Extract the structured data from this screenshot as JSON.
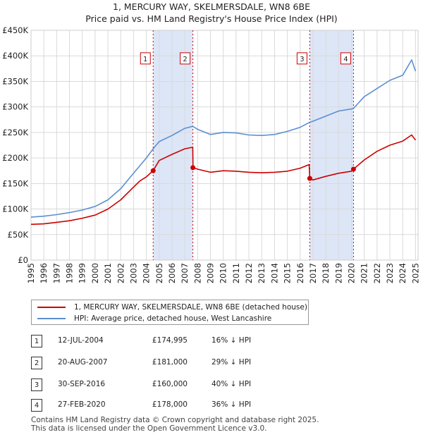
{
  "chart_data": {
    "type": "line",
    "title": "1, MERCURY WAY, SKELMERSDALE, WN8 6BE",
    "subtitle": "Price paid vs. HM Land Registry's House Price Index (HPI)",
    "xlim": [
      1995,
      2025.2
    ],
    "ylim": [
      0,
      450000
    ],
    "x_ticks": [
      "1995",
      "1996",
      "1997",
      "1998",
      "1999",
      "2000",
      "2001",
      "2002",
      "2003",
      "2004",
      "2005",
      "2006",
      "2007",
      "2008",
      "2009",
      "2010",
      "2011",
      "2012",
      "2013",
      "2014",
      "2015",
      "2016",
      "2017",
      "2018",
      "2019",
      "2020",
      "2021",
      "2022",
      "2023",
      "2024",
      "2025"
    ],
    "y_ticks": [
      {
        "value": 0,
        "label": "£0"
      },
      {
        "value": 50000,
        "label": "£50K"
      },
      {
        "value": 100000,
        "label": "£100K"
      },
      {
        "value": 150000,
        "label": "£150K"
      },
      {
        "value": 200000,
        "label": "£200K"
      },
      {
        "value": 250000,
        "label": "£250K"
      },
      {
        "value": 300000,
        "label": "£300K"
      },
      {
        "value": 350000,
        "label": "£350K"
      },
      {
        "value": 400000,
        "label": "£400K"
      },
      {
        "value": 450000,
        "label": "£450K"
      }
    ],
    "grid": true,
    "series": [
      {
        "name": "1, MERCURY WAY, SKELMERSDALE, WN8 6BE (detached house)",
        "color": "#cc0000",
        "x": [
          1995,
          1996,
          1997,
          1998,
          1999,
          2000,
          2001,
          2002,
          2003,
          2003.5,
          2004,
          2004.53,
          2005,
          2006,
          2007,
          2007.62,
          2007.64,
          2008,
          2009,
          2010,
          2011,
          2012,
          2013,
          2014,
          2015,
          2016,
          2016.7,
          2016.75,
          2017,
          2018,
          2019,
          2020,
          2020.16,
          2021,
          2022,
          2023,
          2024,
          2024.7,
          2025
        ],
        "y": [
          70000,
          71000,
          74000,
          77000,
          82000,
          88000,
          100000,
          118000,
          143000,
          155000,
          163000,
          174995,
          195000,
          207000,
          218000,
          221000,
          181000,
          178000,
          172000,
          175000,
          174000,
          172000,
          171000,
          172000,
          174000,
          180000,
          187000,
          160000,
          157000,
          164000,
          170000,
          174000,
          178000,
          196000,
          213000,
          225000,
          233000,
          245000,
          235000
        ]
      },
      {
        "name": "HPI: Average price, detached house, West Lancashire",
        "color": "#5b8fd0",
        "x": [
          1995,
          1996,
          1997,
          1998,
          1999,
          2000,
          2001,
          2002,
          2003,
          2003.5,
          2004,
          2004.53,
          2005,
          2006,
          2007,
          2007.62,
          2008,
          2009,
          2010,
          2011,
          2012,
          2013,
          2014,
          2015,
          2016,
          2016.75,
          2017,
          2018,
          2019,
          2020,
          2020.16,
          2021,
          2022,
          2023,
          2024,
          2024.7,
          2025
        ],
        "y": [
          84000,
          86000,
          89000,
          93000,
          98000,
          105000,
          118000,
          140000,
          170000,
          185000,
          200000,
          218000,
          232000,
          244000,
          258000,
          262000,
          256000,
          246000,
          250000,
          249000,
          245000,
          244000,
          246000,
          252000,
          260000,
          270000,
          272000,
          282000,
          292000,
          296000,
          297000,
          320000,
          336000,
          352000,
          362000,
          392000,
          370000
        ]
      }
    ],
    "sales": [
      {
        "id": "1",
        "x": 2004.53,
        "price": 174995
      },
      {
        "id": "2",
        "x": 2007.63,
        "price": 181000
      },
      {
        "id": "3",
        "x": 2016.75,
        "price": 160000
      },
      {
        "id": "4",
        "x": 2020.16,
        "price": 178000
      }
    ],
    "highlight_spans": [
      [
        2004.53,
        2007.63
      ],
      [
        2016.75,
        2020.16
      ]
    ],
    "marker_box_value": 395000
  },
  "legend": {
    "property_label": "1, MERCURY WAY, SKELMERSDALE, WN8 6BE (detached house)",
    "hpi_label": "HPI: Average price, detached house, West Lancashire"
  },
  "transactions": [
    {
      "num": "1",
      "date": "12-JUL-2004",
      "price": "£174,995",
      "hpi": "16% ↓ HPI"
    },
    {
      "num": "2",
      "date": "20-AUG-2007",
      "price": "£181,000",
      "hpi": "29% ↓ HPI"
    },
    {
      "num": "3",
      "date": "30-SEP-2016",
      "price": "£160,000",
      "hpi": "40% ↓ HPI"
    },
    {
      "num": "4",
      "date": "27-FEB-2020",
      "price": "£178,000",
      "hpi": "36% ↓ HPI"
    }
  ],
  "footer": {
    "line1": "Contains HM Land Registry data © Crown copyright and database right 2025.",
    "line2": "This data is licensed under the Open Government Licence v3.0."
  },
  "colors": {
    "property": "#cc0000",
    "hpi": "#5b8fd0",
    "highlight": "#dde6f7",
    "grid": "#d9d9d9"
  }
}
